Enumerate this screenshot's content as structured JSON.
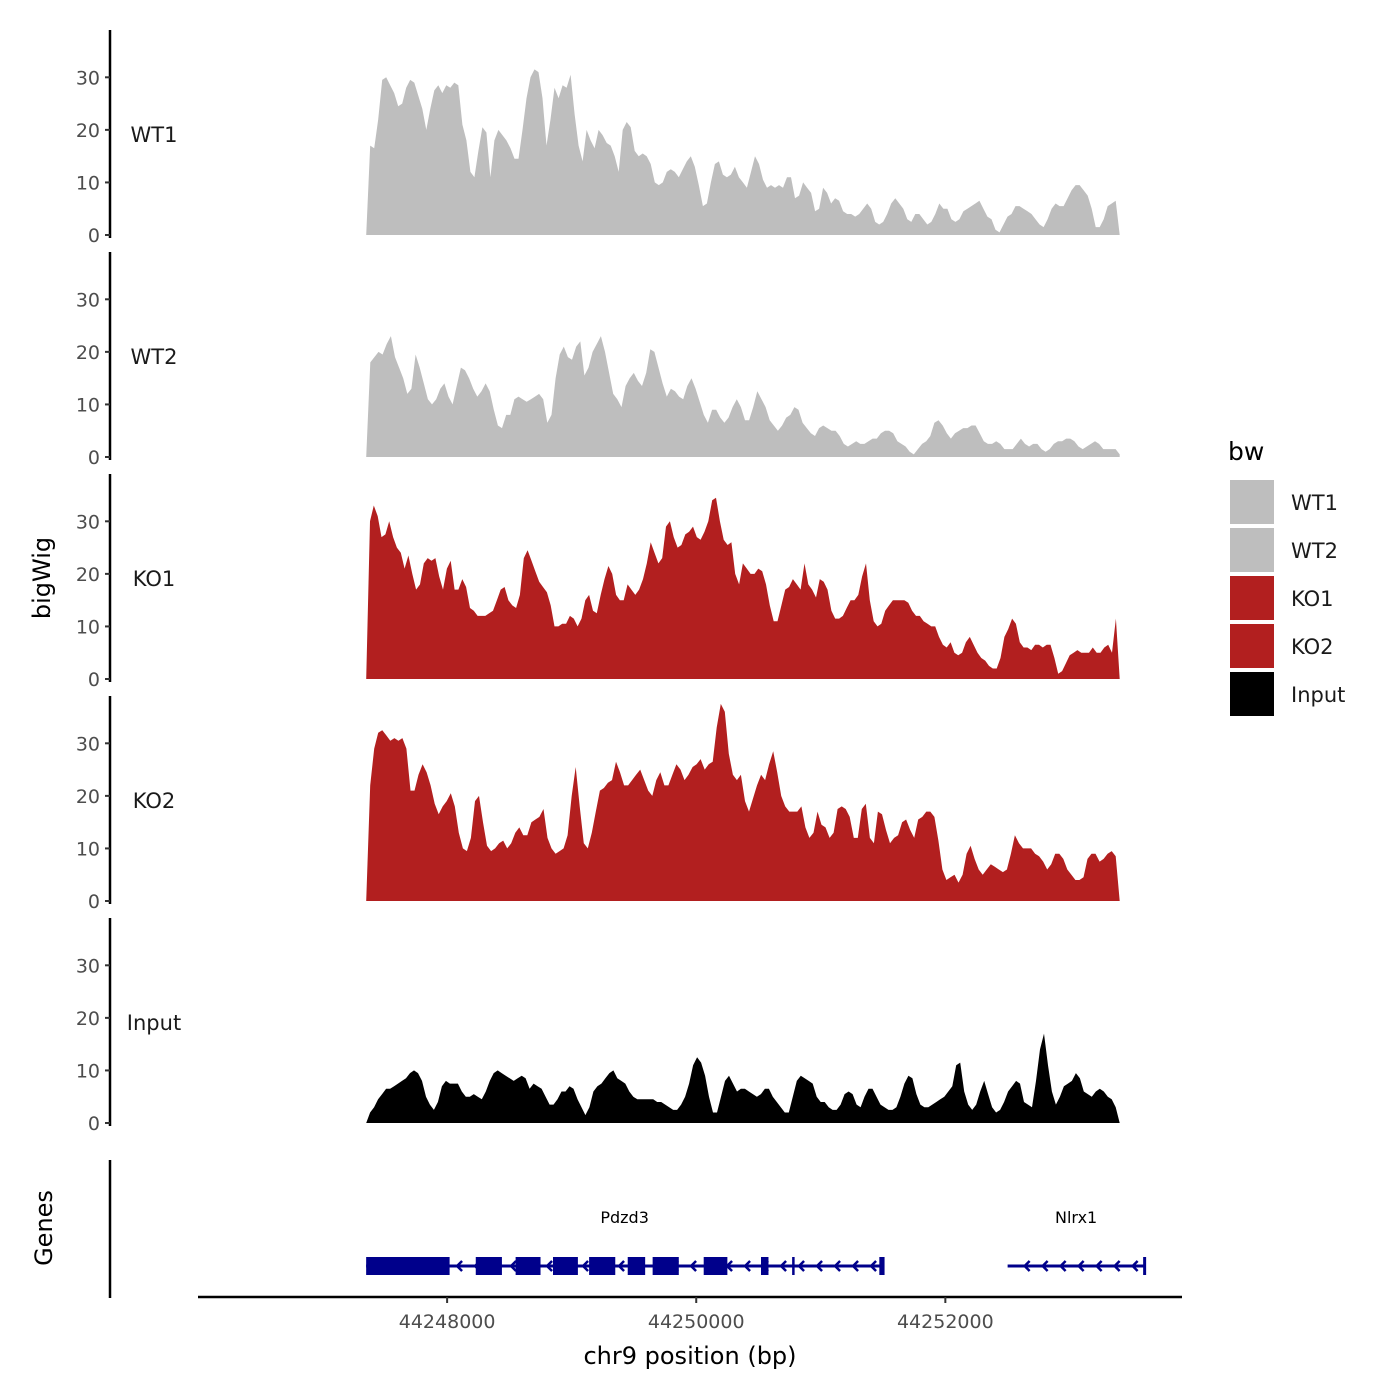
{
  "chart_data": {
    "type": "area",
    "xlabel": "chr9 position (bp)",
    "ylabel": "bigWig",
    "genes_track_label": "Genes",
    "xlim": [
      44246000,
      44253900
    ],
    "x_ticks": [
      44248000,
      44250000,
      44252000
    ],
    "x_tick_labels": [
      "44248000",
      "44250000",
      "44252000"
    ],
    "ylim": [
      0,
      39
    ],
    "y_ticks": [
      0,
      10,
      20,
      30
    ],
    "y_tick_labels": [
      "0",
      "10",
      "20",
      "30"
    ],
    "signal_x_start": 44247350,
    "signal_x_end": 44253400,
    "legend": {
      "title": "bw",
      "position": "right",
      "entries": [
        {
          "label": "WT1",
          "color": "#BEBEBE"
        },
        {
          "label": "WT2",
          "color": "#BEBEBE"
        },
        {
          "label": "KO1",
          "color": "#B21F1F"
        },
        {
          "label": "KO2",
          "color": "#B21F1F"
        },
        {
          "label": "Input",
          "color": "#000000"
        }
      ]
    },
    "series": [
      {
        "name": "WT1",
        "color": "#BEBEBE",
        "values": [
          0,
          17,
          16.5,
          22,
          29.5,
          30,
          28.5,
          27,
          24.5,
          25,
          28,
          29.5,
          29,
          26.5,
          24,
          20,
          24,
          27.5,
          28.5,
          27,
          28.5,
          28,
          29,
          28.5,
          21,
          18,
          12,
          11,
          16,
          20.5,
          19.5,
          11,
          18,
          20,
          19,
          18,
          16.5,
          14.5,
          14.5,
          20,
          26,
          30,
          31.5,
          31,
          26,
          17,
          22,
          28,
          26,
          28.5,
          28,
          30.5,
          23,
          17,
          14,
          20,
          18,
          16.5,
          20,
          19,
          17.5,
          17,
          15,
          12,
          20,
          21.5,
          20.5,
          16,
          15,
          15.5,
          15,
          13.5,
          10,
          9.5,
          10,
          12,
          12.5,
          12,
          11,
          12.5,
          14,
          15,
          13,
          9.5,
          5.5,
          6,
          10,
          13.5,
          14,
          11.5,
          11,
          11.5,
          13,
          11,
          10,
          9,
          12,
          15,
          13.5,
          10.5,
          9,
          9.5,
          9,
          9.5,
          9,
          11,
          11,
          7,
          7.5,
          10,
          9,
          8,
          4.5,
          5,
          9,
          8,
          6,
          7,
          6.5,
          4.5,
          4,
          4,
          3.5,
          4,
          5,
          6,
          5,
          2.5,
          2,
          2.5,
          4,
          6,
          7,
          6,
          5,
          3,
          2.5,
          4,
          4,
          3,
          2,
          2.5,
          4,
          6,
          5,
          5,
          3,
          2.5,
          3,
          4.5,
          5,
          5.5,
          6,
          6.5,
          5,
          3.5,
          3,
          1,
          0.5,
          2,
          3.5,
          4,
          5.5,
          5.5,
          5,
          4.5,
          4,
          3,
          2,
          1.5,
          3,
          5,
          6,
          5.5,
          5.5,
          7,
          8.5,
          9.5,
          9.5,
          8.5,
          7.5,
          5,
          1.5,
          1.5,
          3,
          5.5,
          6,
          6.5,
          0
        ]
      },
      {
        "name": "WT2",
        "color": "#BEBEBE",
        "values": [
          0,
          18,
          19,
          20,
          19.5,
          21.5,
          23,
          19,
          17,
          15,
          12,
          13,
          19.5,
          17,
          14,
          11,
          10,
          11,
          13,
          14,
          11.5,
          10,
          13.5,
          17,
          16.5,
          15,
          13,
          11.5,
          12.5,
          14,
          12.5,
          9,
          6,
          5.5,
          8,
          8,
          11,
          11.5,
          11,
          10.5,
          11,
          11.5,
          12,
          11,
          6.5,
          8,
          15,
          19.5,
          21,
          19,
          18.5,
          21,
          22,
          15.5,
          17,
          20,
          21.5,
          23,
          20,
          16,
          12,
          11,
          9.5,
          13.5,
          15,
          16,
          14.5,
          13.5,
          16,
          20.5,
          20,
          17,
          14,
          11.5,
          13,
          12.5,
          11.5,
          11,
          13.5,
          15,
          13,
          10.5,
          8,
          6.5,
          9,
          9,
          7.5,
          6.5,
          7.5,
          9.5,
          11,
          9.5,
          7,
          7,
          9.5,
          12.5,
          11,
          9.5,
          7,
          6,
          5,
          6,
          7.5,
          8,
          9.5,
          9,
          6.5,
          5.5,
          4.5,
          4,
          5.5,
          6,
          5.5,
          5,
          5,
          4,
          2.5,
          2,
          2.5,
          3,
          2.5,
          2.5,
          3,
          3.5,
          3.5,
          4.5,
          5,
          5,
          4.5,
          3,
          2.5,
          2,
          1,
          0.5,
          1.5,
          2.5,
          3,
          4,
          6.5,
          7,
          6,
          4.5,
          3.5,
          4.5,
          5,
          5.5,
          5.5,
          6,
          6,
          4.5,
          3,
          2.5,
          2.5,
          3,
          2.5,
          1.5,
          1.5,
          1.5,
          2.5,
          3.5,
          2.5,
          2,
          2.5,
          2.5,
          1.5,
          1,
          1.5,
          2.5,
          3,
          3,
          3.5,
          3.5,
          3,
          2,
          1.5,
          2,
          2.5,
          3,
          2.5,
          1.5,
          1.5,
          1.5,
          1.5,
          0.5
        ]
      },
      {
        "name": "KO1",
        "color": "#B21F1F",
        "values": [
          0,
          30,
          33,
          31,
          27,
          27.5,
          30,
          27,
          25,
          24,
          21,
          23.5,
          20,
          17,
          18,
          22,
          23,
          22.5,
          23,
          19.5,
          17,
          21,
          22.5,
          17,
          17,
          19,
          17.5,
          13.5,
          13,
          12,
          12,
          12,
          12.5,
          13,
          15,
          17,
          17.5,
          15,
          14,
          13.5,
          16,
          23,
          24.5,
          22.5,
          20.5,
          18.5,
          17.5,
          16.5,
          14,
          10,
          10,
          10.5,
          10.5,
          12,
          11.5,
          10,
          11.5,
          15,
          16,
          13,
          12.5,
          16,
          19,
          21.5,
          20,
          16,
          15,
          15,
          18,
          17,
          16,
          17,
          19,
          22,
          26,
          24,
          22,
          23,
          29,
          30,
          27,
          25,
          25.5,
          27.5,
          28,
          29,
          27,
          26.5,
          28,
          30,
          34,
          34.5,
          30,
          26.5,
          25.5,
          26,
          20,
          18,
          22,
          21,
          20,
          20,
          21,
          20.5,
          18,
          14,
          11,
          11,
          14,
          17,
          17.5,
          19,
          18,
          17,
          22,
          18,
          17,
          15.5,
          19,
          18.5,
          17,
          13,
          11.5,
          11.5,
          12,
          13.5,
          15,
          15,
          16,
          19.5,
          22,
          15,
          11,
          10,
          10.5,
          13,
          14,
          15,
          15,
          15,
          15,
          14.5,
          13,
          12,
          12,
          11,
          10.5,
          10,
          10,
          8,
          6.5,
          6,
          7,
          5,
          4.5,
          5,
          7,
          8,
          6.5,
          5,
          4,
          3.5,
          2.5,
          2,
          2,
          4,
          8,
          9.5,
          11.5,
          10.5,
          7,
          6,
          6,
          5.5,
          6.5,
          6.5,
          6,
          6.5,
          6.5,
          4,
          1,
          1.5,
          3,
          4.5,
          5,
          5.5,
          5,
          5,
          5,
          6,
          5,
          5,
          6,
          6.5,
          5,
          11.5,
          0
        ]
      },
      {
        "name": "KO2",
        "color": "#B21F1F",
        "values": [
          0,
          22,
          29,
          32,
          32.5,
          31.5,
          30.5,
          31,
          30.5,
          31,
          29,
          21,
          21,
          24,
          26,
          24.5,
          22,
          18.5,
          16.5,
          18,
          19,
          20.5,
          18,
          13,
          10,
          9.5,
          12,
          19,
          20,
          15,
          10.5,
          9.5,
          10,
          11,
          11.5,
          10,
          11,
          13,
          14,
          12.5,
          12.5,
          15,
          15.5,
          16,
          17.5,
          12,
          10,
          9,
          9.5,
          10,
          12.5,
          20,
          25.5,
          18,
          11,
          10,
          13,
          17,
          21,
          21.5,
          22.5,
          23,
          26.5,
          24.5,
          22,
          22,
          23,
          24,
          25,
          23,
          21,
          20,
          23,
          24.5,
          22,
          22,
          24,
          26,
          25,
          23,
          24,
          25.5,
          26,
          27,
          25,
          26,
          26.5,
          33,
          37.5,
          36,
          28,
          24,
          23,
          24,
          19,
          17,
          19.5,
          22,
          24,
          23,
          26,
          28.5,
          24.5,
          20,
          18,
          17,
          17,
          17,
          18,
          14,
          12,
          13,
          17,
          14.5,
          14,
          12,
          13,
          17.5,
          18,
          17.5,
          16,
          12,
          12,
          17.5,
          18.5,
          12,
          11,
          17,
          16.5,
          13.5,
          11,
          12,
          12.5,
          15,
          15.5,
          13.5,
          12,
          15.5,
          16,
          17,
          17,
          16,
          11.5,
          6,
          4,
          4.5,
          5,
          3.5,
          5,
          9,
          10.5,
          8,
          6,
          5,
          6,
          7,
          6.5,
          6,
          5.5,
          6,
          9,
          12.5,
          11,
          10,
          10,
          10,
          9,
          8.5,
          7.5,
          6,
          7,
          9,
          9,
          8,
          6,
          5,
          4,
          4,
          4.5,
          8,
          9,
          9,
          7.5,
          8,
          9,
          9.5,
          8.5,
          0
        ]
      },
      {
        "name": "Input",
        "color": "#000000",
        "values": [
          0,
          2,
          3,
          4.5,
          5.5,
          6.5,
          6.5,
          7,
          7.5,
          8,
          8.5,
          9.5,
          10,
          9.5,
          8,
          5,
          3.5,
          2.5,
          4,
          7,
          8,
          7.5,
          7.5,
          7.5,
          6,
          5,
          5,
          5.5,
          5,
          4.5,
          6,
          8,
          9.5,
          10,
          9.5,
          9,
          8.5,
          8,
          8.5,
          9,
          8.5,
          6.5,
          7.5,
          7,
          6.5,
          5,
          3.5,
          3.5,
          4.5,
          6,
          6,
          7,
          6.5,
          4.5,
          3,
          1.5,
          3,
          6,
          7,
          7.5,
          8.5,
          9.5,
          10,
          8.5,
          8,
          7.5,
          6,
          5,
          4.5,
          4.5,
          4.5,
          4.5,
          4.5,
          4,
          4,
          3.5,
          3,
          2.5,
          2.5,
          3.5,
          5,
          7.5,
          11,
          12.5,
          11.5,
          9,
          5,
          2,
          2,
          5,
          8,
          9,
          7.5,
          6,
          6.5,
          6.5,
          6,
          5.5,
          5,
          5.5,
          6.5,
          6.5,
          5,
          4,
          3,
          2,
          2,
          5,
          8,
          9,
          8.5,
          8,
          7.5,
          5,
          4,
          4,
          3,
          2.5,
          2.5,
          3.5,
          5.5,
          6,
          5.5,
          3.5,
          3,
          5,
          6.5,
          6.5,
          5,
          3.5,
          3,
          2.5,
          2.5,
          3,
          5,
          7.5,
          9,
          8.5,
          5.5,
          3.5,
          3,
          3,
          3.5,
          4,
          4.5,
          5,
          6,
          7,
          11,
          11.5,
          6,
          3.5,
          2.5,
          3.5,
          6,
          8,
          5.5,
          3,
          2,
          2.5,
          4,
          6,
          7,
          8,
          7.5,
          4,
          3.5,
          3,
          8,
          14,
          17,
          11,
          6,
          3.5,
          5,
          7,
          7.5,
          8,
          9.5,
          8.5,
          6,
          5.5,
          5,
          6,
          6.5,
          6,
          5,
          4.5,
          3,
          0
        ]
      }
    ],
    "genes": [
      {
        "name": "Pdzd3",
        "color": "#00008B",
        "strand": "-",
        "start": 44247350,
        "end": 44251500,
        "exons": [
          [
            44247350,
            44248020
          ],
          [
            44248230,
            44248440
          ],
          [
            44248550,
            44248750
          ],
          [
            44248850,
            44249050
          ],
          [
            44249140,
            44249350
          ],
          [
            44249450,
            44249590
          ],
          [
            44249650,
            44249860
          ],
          [
            44250060,
            44250250
          ],
          [
            44250520,
            44250580
          ],
          [
            44250770,
            44250790
          ],
          [
            44251470,
            44251500
          ]
        ]
      },
      {
        "name": "Nlrx1",
        "color": "#00008B",
        "strand": "-",
        "start": 44252500,
        "end": 44253600,
        "exons": []
      }
    ]
  }
}
